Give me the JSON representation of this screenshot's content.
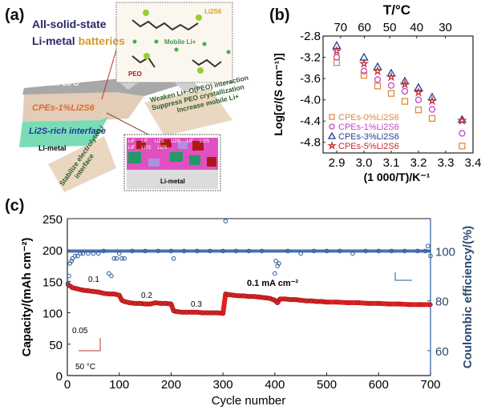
{
  "panel_a": {
    "label": "(a)",
    "title_line1": "All-solid-state",
    "title_line2_part1": "Li-metal ",
    "title_line2_part2": "batteries",
    "cathode_label": "LiNi Mn Co O",
    "electrolyte_label": "CPEs-1%Li2S6",
    "interface_label": "Li2S-rich interface",
    "anode_label": "Li-metal",
    "inset_top": {
      "mobile_li": "Mobile Li+",
      "li2s6": "Li2S6",
      "peo": "PEO"
    },
    "note_right": [
      "Weaken Li+-O(PEO) interaction",
      "Suppress PEO crystallization",
      "Increase mobile Li+"
    ],
    "note_left": [
      "Stabilize electrolyte/Li",
      "interface"
    ],
    "inset_bottom": {
      "grain_labels": [
        "LiF",
        "LiF",
        "Li2S",
        "Li2S",
        "LiF",
        "Li2S",
        "LiF",
        "Li2S",
        "Li2S"
      ],
      "substrate": "Li-metal"
    },
    "colors": {
      "electrolyte": "#e0c8b0",
      "interface": "#6fd8b0",
      "cathode": "#9a9a9a"
    }
  },
  "chart_data": [
    {
      "panel_label": "(b)",
      "type": "scatter",
      "xlabel": "(1 000/T)/K⁻¹",
      "ylabel": "Log[σ/(S cm⁻¹)]",
      "top_axis_label": "T/°C",
      "top_ticks": [
        "70",
        "60",
        "50",
        "40",
        "30"
      ],
      "top_tick_values": [
        70,
        60,
        50,
        40,
        30
      ],
      "xlim": [
        2.85,
        3.4
      ],
      "ylim": [
        -5.0,
        -2.8
      ],
      "xticks": [
        "2.9",
        "3.0",
        "3.1",
        "3.2",
        "3.3",
        "3.4"
      ],
      "yticks": [
        "-2.8",
        "-3.2",
        "-3.6",
        "-4.0",
        "-4.4",
        "-4.8"
      ],
      "legend_position": "bottom-left",
      "x": [
        2.9,
        3.0,
        3.05,
        3.1,
        3.15,
        3.2,
        3.25,
        3.36
      ],
      "series": [
        {
          "name": "CPEs-0%Li2S6",
          "marker": "square",
          "color": "#e08a3c",
          "values": [
            -3.3,
            -3.54,
            -3.74,
            -3.88,
            -4.03,
            -4.19,
            -4.35,
            -4.87
          ]
        },
        {
          "name": "CPEs-1%Li2S6",
          "marker": "circle",
          "color": "#c645c6",
          "values": [
            -3.2,
            -3.46,
            -3.62,
            -3.73,
            -3.84,
            -4.0,
            -4.18,
            -4.63
          ]
        },
        {
          "name": "CPEs-3%Li2S6",
          "marker": "triangle",
          "color": "#233f95",
          "values": [
            -2.98,
            -3.2,
            -3.38,
            -3.5,
            -3.65,
            -3.77,
            -3.95,
            -4.37
          ]
        },
        {
          "name": "CPEs-5%Li2S6",
          "marker": "star",
          "color": "#cc2a2a",
          "values": [
            -3.08,
            -3.32,
            -3.46,
            -3.57,
            -3.71,
            -3.86,
            -4.02,
            -4.39
          ]
        }
      ]
    },
    {
      "panel_label": "(c)",
      "type": "scatter",
      "xlabel": "Cycle number",
      "ylabel": "Capacity/(mAh cm⁻²)",
      "ylabel_right": "Coulombic efficiency/(%)",
      "xlim": [
        0,
        700
      ],
      "ylim": [
        0,
        250
      ],
      "ylim_right": [
        50,
        113
      ],
      "xticks": [
        "0",
        "100",
        "200",
        "300",
        "400",
        "500",
        "600",
        "700"
      ],
      "yticks": [
        "0",
        "50",
        "100",
        "150",
        "200",
        "250"
      ],
      "yticks_right": [
        "60",
        "80",
        "100"
      ],
      "annotations": [
        "0.05",
        "0.1",
        "0.2",
        "0.3",
        "0.1 mA cm⁻²",
        "50 °C"
      ],
      "series": [
        {
          "axis": "left",
          "color": "#e02020",
          "x": [
            1,
            10,
            20,
            30,
            40,
            50,
            60,
            70,
            80,
            90,
            100,
            105,
            110,
            120,
            130,
            140,
            150,
            160,
            170,
            180,
            190,
            200,
            205,
            210,
            220,
            230,
            240,
            250,
            260,
            270,
            280,
            290,
            300,
            305,
            310,
            320,
            330,
            340,
            350,
            360,
            370,
            380,
            390,
            400,
            405,
            410,
            420,
            430,
            440,
            450,
            460,
            470,
            480,
            490,
            500,
            520,
            540,
            560,
            580,
            600,
            620,
            640,
            660,
            680,
            700
          ],
          "values": [
            145,
            140,
            138,
            136,
            135,
            134,
            133,
            131,
            130,
            130,
            128,
            120,
            118,
            116,
            115,
            115,
            114,
            114,
            116,
            115,
            115,
            114,
            103,
            102,
            101,
            101,
            101,
            101,
            100,
            100,
            100,
            100,
            99,
            130,
            129,
            128,
            127,
            127,
            126,
            126,
            125,
            124,
            123,
            120,
            116,
            122,
            122,
            121,
            121,
            120,
            119,
            119,
            118,
            118,
            117,
            117,
            116,
            116,
            115,
            115,
            114,
            114,
            113,
            113,
            113
          ]
        },
        {
          "axis": "right",
          "color": "#2a5a9a",
          "x": [
            1,
            3,
            5,
            8,
            10,
            15,
            20,
            25,
            30,
            40,
            50,
            60,
            70,
            80,
            85,
            90,
            95,
            100,
            105,
            110,
            125,
            150,
            175,
            200,
            205,
            225,
            250,
            275,
            300,
            305,
            325,
            350,
            375,
            400,
            402,
            405,
            408,
            425,
            450,
            475,
            500,
            525,
            550,
            575,
            600,
            625,
            650,
            675,
            690,
            695,
            700
          ],
          "values": [
            87,
            90,
            95,
            96,
            97,
            98,
            98,
            99,
            99,
            99,
            99,
            99,
            100,
            91,
            90,
            97,
            97,
            99,
            97,
            97,
            100,
            100,
            100,
            100,
            97,
            100,
            100,
            100,
            100,
            112,
            100,
            100,
            100,
            91,
            96,
            94,
            95,
            100,
            99,
            100,
            100,
            100,
            99,
            100,
            100,
            100,
            100,
            100,
            100,
            102,
            98
          ]
        }
      ]
    }
  ]
}
